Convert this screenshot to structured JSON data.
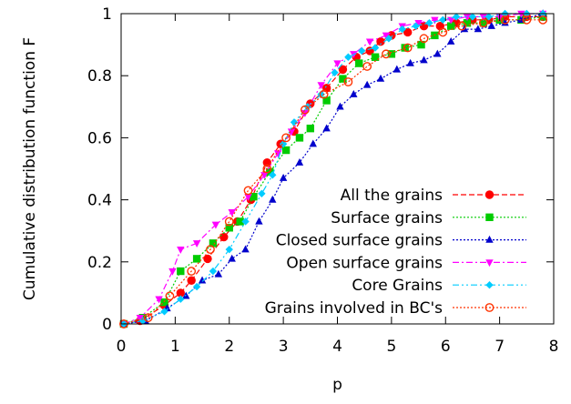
{
  "chart_data": {
    "type": "line",
    "title": "",
    "xlabel": "p",
    "ylabel": "Cumulative distribution function F",
    "xlim": [
      0,
      8
    ],
    "ylim": [
      0,
      1
    ],
    "xticks": [
      "0",
      "1",
      "2",
      "3",
      "4",
      "5",
      "6",
      "7",
      "8"
    ],
    "yticks": [
      "0",
      "0.2",
      "0.4",
      "0.6",
      "0.8",
      "1"
    ],
    "grid": false,
    "legend_position": "bottom-right",
    "series": [
      {
        "name": "All the grains",
        "color": "#ff0000",
        "marker": "circle-filled",
        "line": "dashed",
        "points": [
          [
            0.05,
            0.0
          ],
          [
            0.35,
            0.01
          ],
          [
            0.8,
            0.06
          ],
          [
            1.1,
            0.1
          ],
          [
            1.3,
            0.14
          ],
          [
            1.6,
            0.21
          ],
          [
            1.9,
            0.28
          ],
          [
            2.15,
            0.33
          ],
          [
            2.4,
            0.4
          ],
          [
            2.7,
            0.52
          ],
          [
            2.95,
            0.58
          ],
          [
            3.2,
            0.62
          ],
          [
            3.5,
            0.71
          ],
          [
            3.8,
            0.76
          ],
          [
            4.1,
            0.82
          ],
          [
            4.35,
            0.86
          ],
          [
            4.6,
            0.88
          ],
          [
            4.8,
            0.91
          ],
          [
            5.0,
            0.93
          ],
          [
            5.3,
            0.94
          ],
          [
            5.6,
            0.96
          ],
          [
            5.9,
            0.96
          ],
          [
            6.2,
            0.97
          ],
          [
            6.5,
            0.98
          ],
          [
            6.8,
            0.98
          ],
          [
            7.1,
            0.99
          ],
          [
            7.5,
            0.99
          ],
          [
            7.8,
            0.99
          ]
        ]
      },
      {
        "name": "Surface grains",
        "color": "#00cc00",
        "marker": "square-filled",
        "line": "dotted",
        "points": [
          [
            0.05,
            0.0
          ],
          [
            0.4,
            0.02
          ],
          [
            0.8,
            0.07
          ],
          [
            1.1,
            0.17
          ],
          [
            1.4,
            0.21
          ],
          [
            1.7,
            0.26
          ],
          [
            2.0,
            0.31
          ],
          [
            2.2,
            0.33
          ],
          [
            2.45,
            0.41
          ],
          [
            2.75,
            0.49
          ],
          [
            3.05,
            0.56
          ],
          [
            3.3,
            0.6
          ],
          [
            3.5,
            0.63
          ],
          [
            3.8,
            0.72
          ],
          [
            4.1,
            0.79
          ],
          [
            4.4,
            0.84
          ],
          [
            4.7,
            0.86
          ],
          [
            5.0,
            0.87
          ],
          [
            5.25,
            0.89
          ],
          [
            5.55,
            0.9
          ],
          [
            5.8,
            0.93
          ],
          [
            6.1,
            0.96
          ],
          [
            6.4,
            0.97
          ],
          [
            6.7,
            0.97
          ],
          [
            7.0,
            0.98
          ],
          [
            7.4,
            0.98
          ],
          [
            7.8,
            0.99
          ]
        ]
      },
      {
        "name": "Closed surface grains",
        "color": "#0000cc",
        "marker": "triangle-up-filled",
        "line": "dotted",
        "points": [
          [
            0.05,
            0.0
          ],
          [
            0.45,
            0.01
          ],
          [
            0.85,
            0.05
          ],
          [
            1.2,
            0.09
          ],
          [
            1.5,
            0.14
          ],
          [
            1.8,
            0.16
          ],
          [
            2.05,
            0.21
          ],
          [
            2.3,
            0.24
          ],
          [
            2.55,
            0.33
          ],
          [
            2.8,
            0.4
          ],
          [
            3.0,
            0.47
          ],
          [
            3.3,
            0.52
          ],
          [
            3.55,
            0.58
          ],
          [
            3.8,
            0.63
          ],
          [
            4.05,
            0.7
          ],
          [
            4.3,
            0.74
          ],
          [
            4.55,
            0.77
          ],
          [
            4.8,
            0.79
          ],
          [
            5.1,
            0.82
          ],
          [
            5.35,
            0.84
          ],
          [
            5.6,
            0.85
          ],
          [
            5.85,
            0.87
          ],
          [
            6.1,
            0.91
          ],
          [
            6.35,
            0.95
          ],
          [
            6.6,
            0.95
          ],
          [
            6.85,
            0.96
          ],
          [
            7.1,
            0.97
          ],
          [
            7.4,
            0.98
          ],
          [
            7.8,
            1.0
          ]
        ]
      },
      {
        "name": "Open surface grains",
        "color": "#ff00ff",
        "marker": "triangle-down-filled",
        "line": "dash-dot",
        "points": [
          [
            0.05,
            0.0
          ],
          [
            0.35,
            0.02
          ],
          [
            0.7,
            0.08
          ],
          [
            0.95,
            0.17
          ],
          [
            1.1,
            0.24
          ],
          [
            1.4,
            0.26
          ],
          [
            1.75,
            0.32
          ],
          [
            2.05,
            0.36
          ],
          [
            2.35,
            0.41
          ],
          [
            2.65,
            0.48
          ],
          [
            2.9,
            0.55
          ],
          [
            3.15,
            0.62
          ],
          [
            3.4,
            0.68
          ],
          [
            3.7,
            0.77
          ],
          [
            4.0,
            0.84
          ],
          [
            4.3,
            0.87
          ],
          [
            4.6,
            0.91
          ],
          [
            4.9,
            0.93
          ],
          [
            5.2,
            0.96
          ],
          [
            5.5,
            0.97
          ],
          [
            5.8,
            0.98
          ],
          [
            6.1,
            0.98
          ],
          [
            6.4,
            0.99
          ],
          [
            6.7,
            0.99
          ],
          [
            7.0,
            0.99
          ],
          [
            7.4,
            1.0
          ],
          [
            7.8,
            1.0
          ]
        ]
      },
      {
        "name": "Core Grains",
        "color": "#00ccff",
        "marker": "diamond-filled",
        "line": "dash-dot-dot",
        "points": [
          [
            0.05,
            0.0
          ],
          [
            0.4,
            0.01
          ],
          [
            0.8,
            0.04
          ],
          [
            1.1,
            0.08
          ],
          [
            1.4,
            0.12
          ],
          [
            1.7,
            0.17
          ],
          [
            2.0,
            0.24
          ],
          [
            2.3,
            0.33
          ],
          [
            2.6,
            0.42
          ],
          [
            2.8,
            0.48
          ],
          [
            3.0,
            0.58
          ],
          [
            3.2,
            0.65
          ],
          [
            3.45,
            0.7
          ],
          [
            3.7,
            0.74
          ],
          [
            3.95,
            0.81
          ],
          [
            4.2,
            0.86
          ],
          [
            4.45,
            0.88
          ],
          [
            4.7,
            0.89
          ],
          [
            4.95,
            0.92
          ],
          [
            5.2,
            0.95
          ],
          [
            5.45,
            0.96
          ],
          [
            5.7,
            0.97
          ],
          [
            5.95,
            0.98
          ],
          [
            6.2,
            0.99
          ],
          [
            6.5,
            0.99
          ],
          [
            6.8,
            0.99
          ],
          [
            7.1,
            1.0
          ],
          [
            7.5,
            1.0
          ],
          [
            7.8,
            1.0
          ]
        ]
      },
      {
        "name": "Grains involved in BC's",
        "color": "#ff3300",
        "marker": "circle-open",
        "line": "dotted",
        "points": [
          [
            0.05,
            0.0
          ],
          [
            0.5,
            0.02
          ],
          [
            0.9,
            0.09
          ],
          [
            1.3,
            0.17
          ],
          [
            1.65,
            0.24
          ],
          [
            2.0,
            0.33
          ],
          [
            2.35,
            0.43
          ],
          [
            2.7,
            0.5
          ],
          [
            3.05,
            0.6
          ],
          [
            3.4,
            0.69
          ],
          [
            3.75,
            0.74
          ],
          [
            4.2,
            0.78
          ],
          [
            4.55,
            0.83
          ],
          [
            4.9,
            0.87
          ],
          [
            5.3,
            0.89
          ],
          [
            5.6,
            0.92
          ],
          [
            5.95,
            0.94
          ],
          [
            6.3,
            0.96
          ],
          [
            6.7,
            0.97
          ],
          [
            7.1,
            0.98
          ],
          [
            7.5,
            0.98
          ],
          [
            7.8,
            0.98
          ]
        ]
      }
    ]
  }
}
